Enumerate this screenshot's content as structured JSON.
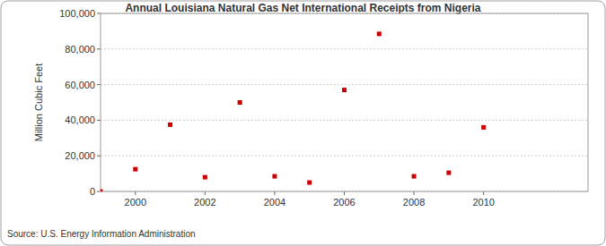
{
  "chart_data": {
    "type": "scatter",
    "title": "Annual Louisiana Natural Gas Net International Receipts from Nigeria",
    "y_label": "Million Cubic Feet",
    "source": "Source: U.S. Energy Information Administration",
    "x": [
      1999,
      2000,
      2001,
      2002,
      2003,
      2004,
      2005,
      2006,
      2007,
      2008,
      2009,
      2010
    ],
    "values": [
      0,
      12500,
      37500,
      8000,
      50000,
      8500,
      5000,
      57000,
      88500,
      8500,
      10500,
      36000
    ],
    "color": "#cc0000",
    "marker": "square",
    "xlim": [
      1999,
      2013
    ],
    "xticks": [
      2000,
      2002,
      2004,
      2006,
      2008,
      2010
    ],
    "ylim": [
      0,
      100000
    ],
    "yticks": [
      0,
      {
        "value": 20000,
        "label": "20,000"
      },
      {
        "value": 40000,
        "label": "40,000"
      },
      {
        "value": 60000,
        "label": "60,000"
      },
      {
        "value": 80000,
        "label": "80,000"
      },
      {
        "value": 100000,
        "label": "100,000"
      }
    ],
    "grid": true
  }
}
